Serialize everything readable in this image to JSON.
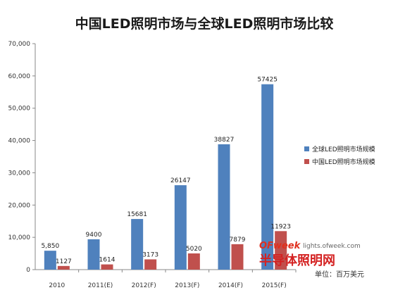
{
  "chart_data": {
    "type": "bar",
    "title": "中国LED照明市场与全球LED照明市场比较",
    "categories": [
      "2010",
      "2011(E)",
      "2012(F)",
      "2013(F)",
      "2014(F)",
      "2015(F)"
    ],
    "y_ticks": [
      "0",
      "10,000",
      "20,000",
      "30,000",
      "40,000",
      "50,000",
      "60,000",
      "70,000"
    ],
    "ylim": [
      0,
      70000
    ],
    "series": [
      {
        "name": "全球LED照明市场规模",
        "color": "#4f81bd",
        "values": [
          5850,
          9400,
          15681,
          26147,
          38827,
          57425
        ],
        "labels": [
          "5,850",
          "9400",
          "15681",
          "26147",
          "38827",
          "57425"
        ]
      },
      {
        "name": "中国LED照明市场规模",
        "color": "#c0504d",
        "values": [
          1127,
          1614,
          3173,
          5020,
          7879,
          11923
        ],
        "labels": [
          "1127",
          "1614",
          "3173",
          "5020",
          "7879",
          "11923"
        ]
      }
    ],
    "legend_position": "right",
    "grid": false
  },
  "watermark": {
    "brand": "OFweek",
    "url": "lights.ofweek.com",
    "site_name": "半导体照明网"
  },
  "unit_note": "单位：百万美元"
}
